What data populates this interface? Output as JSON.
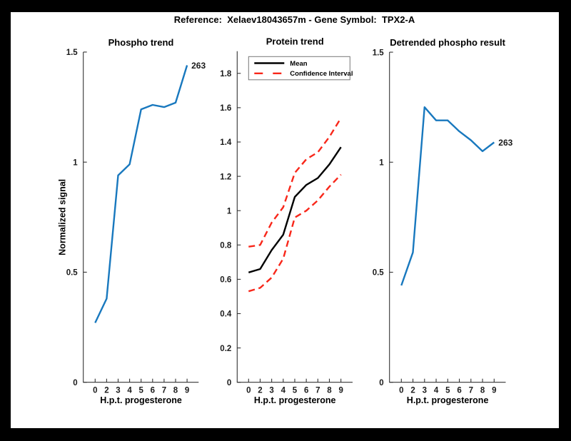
{
  "window": {
    "title": "Reference:  Xelaev18043657m - Gene Symbol:  TPX2-A"
  },
  "colors": {
    "line_blue": "#1878BE",
    "ci_red": "#F8271A",
    "mean_black": "#000000",
    "axis": "#333333",
    "figure_bg": "#000000",
    "canvas_bg": "#FFFFFF"
  },
  "chart_data": [
    {
      "type": "line",
      "id": "phospho-trend",
      "title": "Phospho trend",
      "xlabel": "H.p.t. progesterone",
      "ylabel": "Normalized signal",
      "categories": [
        "0",
        "2",
        "3",
        "4",
        "5",
        "6",
        "7",
        "8",
        "9"
      ],
      "yticks": [
        {
          "v": 0,
          "label": "0"
        },
        {
          "v": 0.5,
          "label": "0.5"
        },
        {
          "v": 1,
          "label": "1"
        },
        {
          "v": 1.5,
          "label": "1.5"
        }
      ],
      "ylim": [
        0,
        1.5
      ],
      "grid": false,
      "series": [
        {
          "id": "phospho-line",
          "name": "263",
          "color_key": "line_blue",
          "dashed": false,
          "values": [
            0.27,
            0.38,
            0.94,
            0.99,
            1.24,
            1.26,
            1.25,
            1.27,
            1.44
          ]
        }
      ],
      "end_label": "263"
    },
    {
      "type": "line",
      "id": "protein-trend",
      "title": "Protein trend",
      "xlabel": "H.p.t. progesterone",
      "ylabel": "",
      "categories": [
        "0",
        "2",
        "3",
        "4",
        "5",
        "6",
        "7",
        "8",
        "9"
      ],
      "yticks": [
        {
          "v": 0,
          "label": "0"
        },
        {
          "v": 0.2,
          "label": "0.2"
        },
        {
          "v": 0.4,
          "label": "0.4"
        },
        {
          "v": 0.6,
          "label": "0.6"
        },
        {
          "v": 0.8,
          "label": "0.8"
        },
        {
          "v": 1,
          "label": "1"
        },
        {
          "v": 1.2,
          "label": "1.2"
        },
        {
          "v": 1.4,
          "label": "1.4"
        },
        {
          "v": 1.6,
          "label": "1.6"
        },
        {
          "v": 1.8,
          "label": "1.8"
        }
      ],
      "ylim": [
        0,
        1.93
      ],
      "grid": false,
      "series": [
        {
          "id": "mean-line",
          "name": "Mean",
          "color_key": "mean_black",
          "dashed": false,
          "values": [
            0.64,
            0.66,
            0.77,
            0.86,
            1.08,
            1.15,
            1.19,
            1.27,
            1.37
          ]
        },
        {
          "id": "ci-upper-line",
          "name": "Confidence Interval",
          "color_key": "ci_red",
          "dashed": true,
          "values": [
            0.79,
            0.8,
            0.93,
            1.02,
            1.22,
            1.3,
            1.34,
            1.43,
            1.54
          ]
        },
        {
          "id": "ci-lower-line",
          "name": "Confidence Interval",
          "color_key": "ci_red",
          "dashed": true,
          "values": [
            0.53,
            0.55,
            0.61,
            0.72,
            0.96,
            1.0,
            1.06,
            1.14,
            1.21
          ]
        }
      ],
      "legend": {
        "position": "northwest-inside",
        "entries": [
          {
            "label": "Mean",
            "color_key": "mean_black",
            "dashed": false
          },
          {
            "label": "Confidence Interval",
            "color_key": "ci_red",
            "dashed": true
          }
        ]
      }
    },
    {
      "type": "line",
      "id": "detrended-phospho",
      "title": "Detrended phospho result",
      "xlabel": "H.p.t. progesterone",
      "ylabel": "",
      "categories": [
        "0",
        "2",
        "3",
        "4",
        "5",
        "6",
        "7",
        "8",
        "9"
      ],
      "yticks": [
        {
          "v": 0,
          "label": "0"
        },
        {
          "v": 0.5,
          "label": "0.5"
        },
        {
          "v": 1,
          "label": "1"
        },
        {
          "v": 1.5,
          "label": "1.5"
        }
      ],
      "ylim": [
        0,
        1.5
      ],
      "grid": false,
      "series": [
        {
          "id": "detrended-line",
          "name": "263",
          "color_key": "line_blue",
          "dashed": false,
          "values": [
            0.44,
            0.59,
            1.25,
            1.19,
            1.19,
            1.14,
            1.1,
            1.05,
            1.09
          ]
        }
      ],
      "end_label": "263"
    }
  ]
}
